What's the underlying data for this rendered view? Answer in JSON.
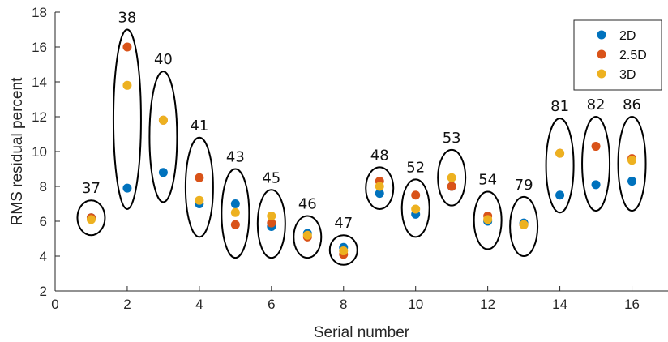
{
  "chart_data": {
    "type": "scatter",
    "xlabel": "Serial number",
    "ylabel": "RMS residual percent",
    "xlim": [
      0,
      17
    ],
    "ylim": [
      2,
      18
    ],
    "x_ticks": [
      0,
      2,
      4,
      6,
      8,
      10,
      12,
      14,
      16
    ],
    "y_ticks": [
      2,
      4,
      6,
      8,
      10,
      12,
      14,
      16,
      18
    ],
    "grid": false,
    "legend_position": "top-right",
    "x": [
      1,
      2,
      3,
      4,
      5,
      6,
      7,
      8,
      9,
      10,
      11,
      12,
      13,
      14,
      15,
      16
    ],
    "series": [
      {
        "name": "2D",
        "color": "#0072BD",
        "values": [
          6.2,
          7.9,
          8.8,
          7.0,
          7.0,
          5.7,
          5.3,
          4.5,
          7.6,
          6.4,
          8.0,
          6.0,
          5.9,
          7.5,
          8.1,
          8.3
        ]
      },
      {
        "name": "2.5D",
        "color": "#D95319",
        "values": [
          6.2,
          16.0,
          11.8,
          8.5,
          5.8,
          5.9,
          5.1,
          4.1,
          8.3,
          7.5,
          8.0,
          6.3,
          5.8,
          9.9,
          10.3,
          9.6
        ]
      },
      {
        "name": "3D",
        "color": "#EDB120",
        "values": [
          6.1,
          13.8,
          11.8,
          7.2,
          6.5,
          6.3,
          5.2,
          4.3,
          8.0,
          6.7,
          8.5,
          6.1,
          5.8,
          9.9,
          null,
          9.5
        ]
      }
    ],
    "annotations": [
      {
        "label": "37",
        "x": 1,
        "y_low": 5.2,
        "y_high": 7.2
      },
      {
        "label": "38",
        "x": 2,
        "y_low": 6.7,
        "y_high": 17.0
      },
      {
        "label": "40",
        "x": 3,
        "y_low": 7.1,
        "y_high": 14.6
      },
      {
        "label": "41",
        "x": 4,
        "y_low": 5.1,
        "y_high": 10.8
      },
      {
        "label": "43",
        "x": 5,
        "y_low": 3.9,
        "y_high": 9.0
      },
      {
        "label": "45",
        "x": 6,
        "y_low": 3.9,
        "y_high": 7.8
      },
      {
        "label": "46",
        "x": 7,
        "y_low": 3.9,
        "y_high": 6.3
      },
      {
        "label": "47",
        "x": 8,
        "y_low": 3.5,
        "y_high": 5.2
      },
      {
        "label": "48",
        "x": 9,
        "y_low": 6.7,
        "y_high": 9.1
      },
      {
        "label": "52",
        "x": 10,
        "y_low": 5.1,
        "y_high": 8.4
      },
      {
        "label": "53",
        "x": 11,
        "y_low": 6.9,
        "y_high": 10.1
      },
      {
        "label": "54",
        "x": 12,
        "y_low": 4.4,
        "y_high": 7.7
      },
      {
        "label": "79",
        "x": 13,
        "y_low": 4.0,
        "y_high": 7.4
      },
      {
        "label": "81",
        "x": 14,
        "y_low": 6.5,
        "y_high": 11.9
      },
      {
        "label": "82",
        "x": 15,
        "y_low": 6.6,
        "y_high": 12.0
      },
      {
        "label": "86",
        "x": 16,
        "y_low": 6.6,
        "y_high": 12.0
      }
    ]
  }
}
